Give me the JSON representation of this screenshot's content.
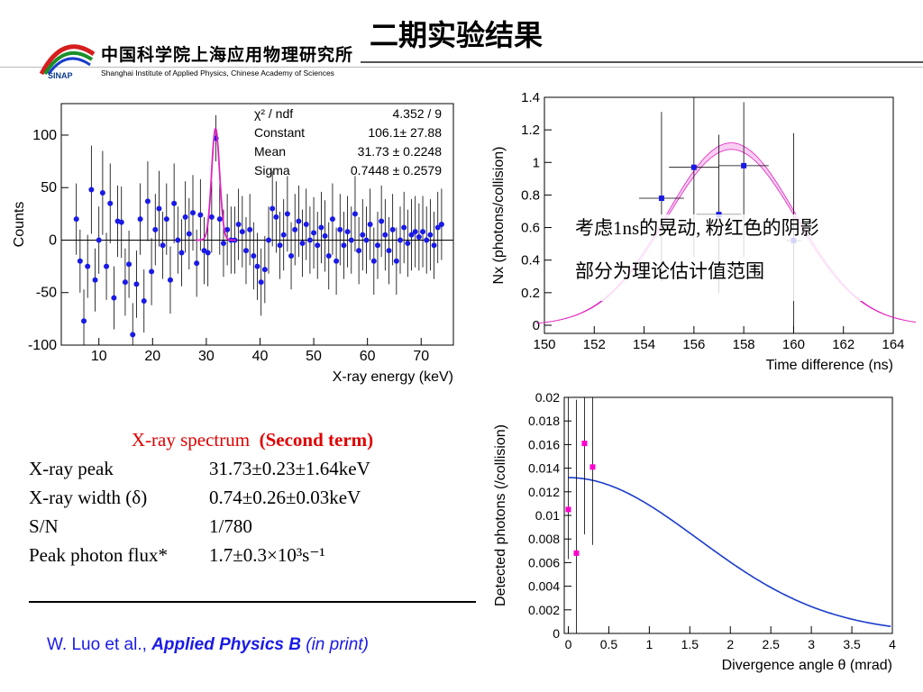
{
  "title": "二期实验结果",
  "institute": {
    "chinese_name": "中国科学院上海应用物理研究所",
    "english_name": "Shanghai Institute of Applied Physics, Chinese Academy of Sciences",
    "logo_text": "SINAP"
  },
  "results": {
    "caption_plain": "X-ray spectrum",
    "caption_bold": "(Second term)",
    "rows": [
      {
        "label": "X-ray peak",
        "value": "31.73±0.23±1.64keV"
      },
      {
        "label": "X-ray width (δ)",
        "value": "0.74±0.26±0.03keV"
      },
      {
        "label": "S/N",
        "value": "1/780"
      },
      {
        "label": "Peak photon flux*",
        "value": "1.7±0.3×10³s⁻¹"
      }
    ]
  },
  "citation": {
    "authors": "W. Luo et al.,",
    "journal": "Applied Physics B",
    "status": "(in print)"
  },
  "note": {
    "line1": "考虑1ns的晃动, 粉红色的阴影",
    "line2": "部分为理论估计值范围"
  },
  "colors": {
    "data_points": "#1a1ae6",
    "fit_curve": "#e020c0",
    "theory_curve": "#1a3ccc",
    "pink_points": "#ff00cc",
    "shade": "#f4a6e8",
    "caption_red": "#e00000",
    "citation_blue": "#1a1ae6"
  },
  "chart_data": [
    {
      "type": "scatter",
      "title": "",
      "xlabel": "X-ray energy (keV)",
      "ylabel": "Counts",
      "xlim": [
        3,
        76
      ],
      "ylim": [
        -100,
        130
      ],
      "xticks": [
        10,
        20,
        30,
        40,
        50,
        60,
        70
      ],
      "yticks": [
        -100,
        -50,
        0,
        50,
        100
      ],
      "stats": {
        "chi2_ndf": "4.352 / 9",
        "constant": "106.1± 27.88",
        "mean": "31.73 ± 0.2248",
        "sigma": "0.7448 ± 0.2579"
      },
      "stats_labels": {
        "chi2": "χ² / ndf",
        "constant": "Constant",
        "mean": "Mean",
        "sigma": "Sigma"
      },
      "fit": {
        "type": "gaussian",
        "constant": 106.1,
        "mean": 31.73,
        "sigma": 0.7448
      },
      "points": [
        {
          "x": 5.8,
          "y": 20,
          "err": 34
        },
        {
          "x": 6.5,
          "y": -20,
          "err": 30
        },
        {
          "x": 7.2,
          "y": -77,
          "err": 30
        },
        {
          "x": 7.9,
          "y": -25,
          "err": 30
        },
        {
          "x": 8.6,
          "y": 48,
          "err": 42
        },
        {
          "x": 9.3,
          "y": -38,
          "err": 30
        },
        {
          "x": 10.0,
          "y": 0,
          "err": 32
        },
        {
          "x": 10.7,
          "y": 45,
          "err": 40
        },
        {
          "x": 11.4,
          "y": -25,
          "err": 32
        },
        {
          "x": 12.1,
          "y": 35,
          "err": 38
        },
        {
          "x": 12.8,
          "y": -55,
          "err": 30
        },
        {
          "x": 13.5,
          "y": 18,
          "err": 34
        },
        {
          "x": 14.2,
          "y": 17,
          "err": 34
        },
        {
          "x": 14.9,
          "y": -40,
          "err": 32
        },
        {
          "x": 15.6,
          "y": -23,
          "err": 32
        },
        {
          "x": 16.3,
          "y": -90,
          "err": 30
        },
        {
          "x": 17.0,
          "y": -42,
          "err": 32
        },
        {
          "x": 17.7,
          "y": 20,
          "err": 34
        },
        {
          "x": 18.4,
          "y": -58,
          "err": 30
        },
        {
          "x": 19.1,
          "y": 37,
          "err": 38
        },
        {
          "x": 19.8,
          "y": -30,
          "err": 32
        },
        {
          "x": 20.5,
          "y": 10,
          "err": 34
        },
        {
          "x": 21.2,
          "y": 30,
          "err": 36
        },
        {
          "x": 21.9,
          "y": -5,
          "err": 32
        },
        {
          "x": 22.6,
          "y": 20,
          "err": 34
        },
        {
          "x": 23.3,
          "y": -38,
          "err": 32
        },
        {
          "x": 24.0,
          "y": 35,
          "err": 38
        },
        {
          "x": 24.7,
          "y": 0,
          "err": 32
        },
        {
          "x": 25.4,
          "y": -12,
          "err": 32
        },
        {
          "x": 26.1,
          "y": 22,
          "err": 34
        },
        {
          "x": 26.8,
          "y": 6,
          "err": 34
        },
        {
          "x": 27.5,
          "y": 26,
          "err": 36
        },
        {
          "x": 28.2,
          "y": -22,
          "err": 32
        },
        {
          "x": 28.9,
          "y": 24,
          "err": 34
        },
        {
          "x": 29.6,
          "y": -10,
          "err": 32
        },
        {
          "x": 30.3,
          "y": -12,
          "err": 32
        },
        {
          "x": 31.0,
          "y": 22,
          "err": 34
        },
        {
          "x": 31.8,
          "y": 97,
          "err": 22
        },
        {
          "x": 32.5,
          "y": 20,
          "err": 34
        },
        {
          "x": 33.2,
          "y": -3,
          "err": 32
        },
        {
          "x": 33.9,
          "y": 10,
          "err": 34
        },
        {
          "x": 34.6,
          "y": 0,
          "err": 32
        },
        {
          "x": 35.3,
          "y": 0,
          "err": 32
        },
        {
          "x": 36.0,
          "y": 15,
          "err": 34
        },
        {
          "x": 36.7,
          "y": 8,
          "err": 34
        },
        {
          "x": 37.4,
          "y": -10,
          "err": 32
        },
        {
          "x": 38.1,
          "y": 10,
          "err": 34
        },
        {
          "x": 38.8,
          "y": -15,
          "err": 32
        },
        {
          "x": 39.5,
          "y": -25,
          "err": 32
        },
        {
          "x": 40.2,
          "y": -40,
          "err": 32
        },
        {
          "x": 40.9,
          "y": -28,
          "err": 32
        },
        {
          "x": 41.6,
          "y": 0,
          "err": 32
        },
        {
          "x": 42.3,
          "y": 30,
          "err": 36
        },
        {
          "x": 43.0,
          "y": 22,
          "err": 34
        },
        {
          "x": 43.7,
          "y": -5,
          "err": 32
        },
        {
          "x": 44.4,
          "y": 5,
          "err": 34
        },
        {
          "x": 45.1,
          "y": 25,
          "err": 36
        },
        {
          "x": 45.8,
          "y": -15,
          "err": 32
        },
        {
          "x": 46.5,
          "y": 10,
          "err": 34
        },
        {
          "x": 47.2,
          "y": 18,
          "err": 34
        },
        {
          "x": 47.9,
          "y": -3,
          "err": 32
        },
        {
          "x": 48.6,
          "y": 15,
          "err": 34
        },
        {
          "x": 49.3,
          "y": 0,
          "err": 32
        },
        {
          "x": 50.0,
          "y": 7,
          "err": 34
        },
        {
          "x": 50.7,
          "y": -5,
          "err": 32
        },
        {
          "x": 51.4,
          "y": 12,
          "err": 34
        },
        {
          "x": 52.1,
          "y": 4,
          "err": 34
        },
        {
          "x": 52.8,
          "y": -15,
          "err": 32
        },
        {
          "x": 53.5,
          "y": 20,
          "err": 34
        },
        {
          "x": 54.2,
          "y": -20,
          "err": 32
        },
        {
          "x": 54.9,
          "y": 10,
          "err": 34
        },
        {
          "x": 55.6,
          "y": -5,
          "err": 32
        },
        {
          "x": 56.3,
          "y": 8,
          "err": 34
        },
        {
          "x": 57.0,
          "y": 0,
          "err": 32
        },
        {
          "x": 57.7,
          "y": 25,
          "err": 36
        },
        {
          "x": 58.4,
          "y": -10,
          "err": 32
        },
        {
          "x": 59.1,
          "y": 5,
          "err": 34
        },
        {
          "x": 59.8,
          "y": 0,
          "err": 32
        },
        {
          "x": 60.5,
          "y": 15,
          "err": 34
        },
        {
          "x": 61.2,
          "y": -20,
          "err": 32
        },
        {
          "x": 61.9,
          "y": -5,
          "err": 32
        },
        {
          "x": 62.6,
          "y": 18,
          "err": 34
        },
        {
          "x": 63.3,
          "y": 5,
          "err": 34
        },
        {
          "x": 64.0,
          "y": -10,
          "err": 32
        },
        {
          "x": 64.7,
          "y": 10,
          "err": 34
        },
        {
          "x": 65.4,
          "y": -20,
          "err": 32
        },
        {
          "x": 66.1,
          "y": 0,
          "err": 32
        },
        {
          "x": 66.8,
          "y": 12,
          "err": 34
        },
        {
          "x": 67.5,
          "y": -3,
          "err": 32
        },
        {
          "x": 68.2,
          "y": 5,
          "err": 34
        },
        {
          "x": 68.9,
          "y": 8,
          "err": 34
        },
        {
          "x": 69.6,
          "y": 3,
          "err": 32
        },
        {
          "x": 70.3,
          "y": 8,
          "err": 34
        },
        {
          "x": 71.0,
          "y": 0,
          "err": 32
        },
        {
          "x": 71.7,
          "y": 5,
          "err": 34
        },
        {
          "x": 72.4,
          "y": -5,
          "err": 32
        },
        {
          "x": 73.1,
          "y": 12,
          "err": 34
        },
        {
          "x": 73.8,
          "y": 15,
          "err": 34
        }
      ]
    },
    {
      "type": "scatter",
      "title": "",
      "xlabel": "Time difference (ns)",
      "ylabel": "Nx (photons/collision)",
      "xlim": [
        150,
        164
      ],
      "ylim": [
        -0.05,
        1.4
      ],
      "xticks": [
        150,
        152,
        154,
        156,
        158,
        160,
        162,
        164
      ],
      "yticks": [
        0,
        0.2,
        0.4,
        0.6,
        0.8,
        1,
        1.2,
        1.4
      ],
      "points": [
        {
          "x": 154.7,
          "y": 0.78,
          "xerr": 0.9,
          "yerr_up": 0.53,
          "yerr_down": 0.51
        },
        {
          "x": 156.0,
          "y": 0.97,
          "xerr": 1.0,
          "yerr_up": 0.47,
          "yerr_down": 0.55
        },
        {
          "x": 157.0,
          "y": 0.68,
          "xerr": 0.9,
          "yerr_up": 0.49,
          "yerr_down": 0.48
        },
        {
          "x": 158.0,
          "y": 0.98,
          "xerr": 1.0,
          "yerr_up": 0.39,
          "yerr_down": 0.56
        },
        {
          "x": 160.0,
          "y": 0.52,
          "xerr": 0.3,
          "yerr_up": 0.66,
          "yerr_down": 0.57
        }
      ],
      "shade": {
        "center": 157.5,
        "width": 2.6,
        "peak_low": 1.08,
        "peak_high": 1.12
      }
    },
    {
      "type": "line",
      "title": "",
      "xlabel": "Divergence angle θ (mrad)",
      "ylabel": "Detected photons (/collision)",
      "xlim": [
        -0.05,
        4
      ],
      "ylim": [
        0,
        0.02
      ],
      "xticks": [
        0,
        0.5,
        1,
        1.5,
        2,
        2.5,
        3,
        3.5,
        4
      ],
      "xtick_labels": [
        "0",
        "0.5",
        "1",
        "1.5",
        "2",
        "2.5",
        "3",
        "3.5",
        "4"
      ],
      "yticks": [
        0,
        0.002,
        0.004,
        0.006,
        0.008,
        0.01,
        0.012,
        0.014,
        0.016,
        0.018,
        0.02
      ],
      "ytick_labels": [
        "0",
        "0.002",
        "0.004",
        "0.006",
        "0.008",
        "0.01",
        "0.012",
        "0.014",
        "0.016",
        "0.018",
        "0.02"
      ],
      "curve": {
        "peak": 0.0132,
        "sigma": 1.6
      },
      "points": [
        {
          "x": 0.0,
          "y": 0.0105,
          "err_up": 0.0095,
          "err_down": 0.0042
        },
        {
          "x": 0.1,
          "y": 0.0068,
          "err_up": 0.013,
          "err_down": 0.0068
        },
        {
          "x": 0.2,
          "y": 0.0161,
          "err_up": 0.0039,
          "err_down": 0.0077
        },
        {
          "x": 0.3,
          "y": 0.0141,
          "err_up": 0.0059,
          "err_down": 0.0066
        }
      ]
    }
  ]
}
